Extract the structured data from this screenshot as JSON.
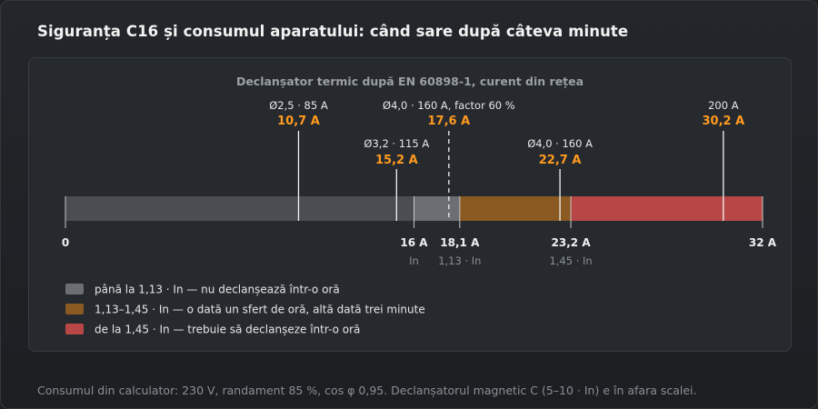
{
  "title": "Siguranța C16 și consumul aparatului: când sare după câteva minute",
  "footnote": "Consumul din calculator: 230 V, randament 85 %, cos φ 0,95. Declanșatorul magnetic C (5–10 · In) e în afara scalei.",
  "colors": {
    "zone_gray_dark": "#4a4d51",
    "zone_gray_light": "#6b6e72",
    "zone_brown": "#8a5a22",
    "zone_red": "#b94646",
    "accent_orange": "#ff9a1f",
    "marker_line": "#f2f2f2"
  },
  "chart_data": {
    "type": "bar",
    "title": "Declanșator termic după EN 60898-1, curent din rețea",
    "unit": "A",
    "xlim": [
      0,
      32
    ],
    "zones": [
      {
        "from": 0,
        "to": 16,
        "color": "#4a4d51"
      },
      {
        "from": 16,
        "to": 18.1,
        "color": "#6b6e72"
      },
      {
        "from": 18.1,
        "to": 23.2,
        "color": "#8a5a22"
      },
      {
        "from": 23.2,
        "to": 32,
        "color": "#b94646"
      }
    ],
    "ticks": [
      {
        "value": 0,
        "label": "0",
        "sublabel": ""
      },
      {
        "value": 16,
        "label": "16 A",
        "sublabel": "In"
      },
      {
        "value": 18.1,
        "label": "18,1 A",
        "sublabel": "1,13 · In"
      },
      {
        "value": 23.2,
        "label": "23,2 A",
        "sublabel": "1,45 · In"
      },
      {
        "value": 32,
        "label": "32 A",
        "sublabel": ""
      }
    ],
    "markers": [
      {
        "value": 10.7,
        "label": "Ø2,5 · 85 A",
        "value_label": "10,7 A",
        "dashed": false,
        "level": "high"
      },
      {
        "value": 15.2,
        "label": "Ø3,2 · 115 A",
        "value_label": "15,2 A",
        "dashed": false,
        "level": "low"
      },
      {
        "value": 17.6,
        "label": "Ø4,0 · 160 A, factor 60 %",
        "value_label": "17,6 A",
        "dashed": true,
        "level": "high"
      },
      {
        "value": 22.7,
        "label": "Ø4,0 · 160 A",
        "value_label": "22,7 A",
        "dashed": false,
        "level": "low"
      },
      {
        "value": 30.2,
        "label": "200 A",
        "value_label": "30,2 A",
        "dashed": false,
        "level": "high"
      }
    ],
    "legend": [
      {
        "color": "#6b6e72",
        "label": "până la 1,13 · In — nu declanșează într-o oră"
      },
      {
        "color": "#8a5a22",
        "label": "1,13–1,45 · In — o dată un sfert de oră, altă dată trei minute"
      },
      {
        "color": "#b94646",
        "label": "de la 1,45 · In — trebuie să declanșeze într-o oră"
      }
    ]
  }
}
